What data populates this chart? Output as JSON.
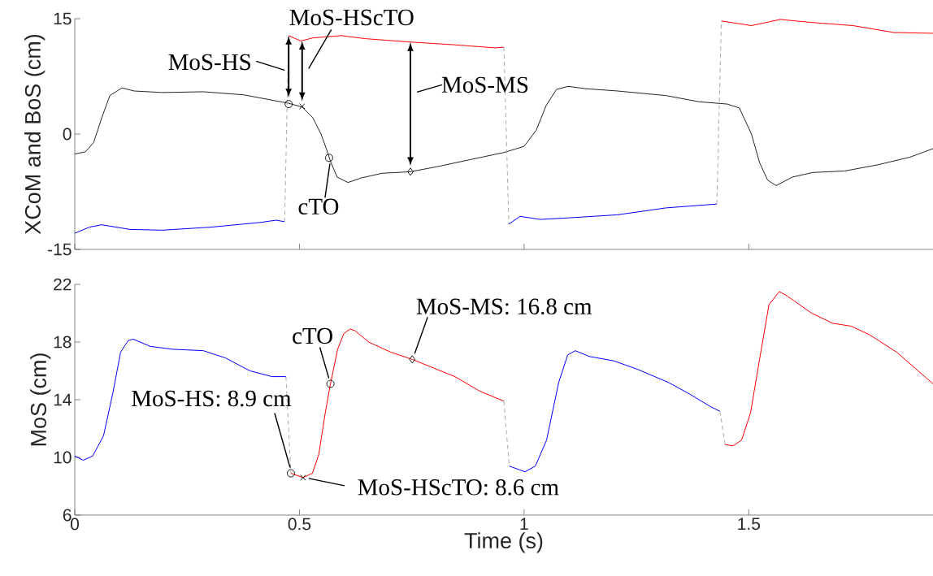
{
  "chart_data": [
    {
      "type": "line",
      "ylabel": "XCoM and BoS (cm)",
      "xlim": [
        0,
        1.91
      ],
      "xticks": [
        0,
        0.5,
        1,
        1.5
      ],
      "ylim": [
        -15,
        15
      ],
      "yticks": [
        -15,
        0,
        15
      ],
      "tick_labels": "y",
      "series": [
        {
          "color": "#262626",
          "x": [
            0,
            0.024,
            0.042,
            0.06,
            0.078,
            0.105,
            0.132,
            0.195,
            0.286,
            0.376,
            0.476,
            0.506,
            0.53,
            0.548,
            0.561,
            0.57,
            0.584,
            0.608,
            0.638,
            0.684,
            0.747,
            0.81,
            0.882,
            0.955,
            1.0,
            1.027,
            1.049,
            1.072,
            1.098,
            1.136,
            1.208,
            1.316,
            1.389,
            1.452,
            1.479,
            1.506,
            1.524,
            1.542,
            1.561,
            1.597,
            1.642,
            1.714,
            1.787,
            1.859,
            1.91
          ],
          "values": [
            -2.6,
            -2.3,
            -1.1,
            2.1,
            5.0,
            6.0,
            5.6,
            5.4,
            5.5,
            5.1,
            4.0,
            3.5,
            2.1,
            0,
            -2.1,
            -3.7,
            -5.6,
            -6.3,
            -5.7,
            -5.1,
            -4.9,
            -4.2,
            -3.3,
            -2.4,
            -1.6,
            0.5,
            3.7,
            5.8,
            6.2,
            5.9,
            5.6,
            5.0,
            4.2,
            3.9,
            3.4,
            0,
            -3.7,
            -6.0,
            -6.7,
            -5.6,
            -5.0,
            -4.8,
            -4.0,
            -3.0,
            -1.9
          ]
        },
        {
          "color": "#0000ff",
          "x": [
            0,
            0.033,
            0.06,
            0.123,
            0.195,
            0.304,
            0.412,
            0.448,
            0.467
          ],
          "values": [
            -12.9,
            -12.1,
            -11.8,
            -12.4,
            -12.5,
            -12.1,
            -11.5,
            -11.2,
            -11.4
          ]
        },
        {
          "color": "#aaaaaa",
          "line_style": "dashed",
          "x": [
            0.467,
            0.476
          ],
          "values": [
            -11.4,
            12.8
          ]
        },
        {
          "color": "#ff0000",
          "x": [
            0.476,
            0.503,
            0.53,
            0.593,
            0.647,
            0.738,
            0.846,
            0.937,
            0.955
          ],
          "values": [
            12.8,
            12.1,
            12.5,
            12.8,
            12.4,
            12.0,
            11.6,
            11.2,
            11.3
          ]
        },
        {
          "color": "#aaaaaa",
          "line_style": "dashed",
          "x": [
            0.955,
            0.966
          ],
          "values": [
            11.3,
            -11.7
          ]
        },
        {
          "color": "#0000ff",
          "x": [
            0.966,
            0.991,
            1.036,
            1.099,
            1.208,
            1.316,
            1.429
          ],
          "values": [
            -11.7,
            -10.7,
            -11.1,
            -10.9,
            -10.5,
            -9.6,
            -9.1
          ]
        },
        {
          "color": "#aaaaaa",
          "line_style": "dashed",
          "x": [
            1.429,
            1.439
          ],
          "values": [
            -9.1,
            14.7
          ]
        },
        {
          "color": "#ff0000",
          "x": [
            1.439,
            1.506,
            1.57,
            1.642,
            1.732,
            1.823,
            1.91
          ],
          "values": [
            14.7,
            14.1,
            14.9,
            14.5,
            14.1,
            13.2,
            13.1
          ]
        },
        {
          "type": "scatter",
          "marker": "circle",
          "color": "#000000",
          "x": [
            0.476
          ],
          "values": [
            3.9
          ]
        },
        {
          "type": "scatter",
          "marker": "cross",
          "color": "#000000",
          "x": [
            0.506
          ],
          "values": [
            3.6
          ]
        },
        {
          "type": "scatter",
          "marker": "circle",
          "color": "#000000",
          "x": [
            0.566
          ],
          "values": [
            -3.1
          ]
        },
        {
          "type": "scatter",
          "marker": "diamond",
          "color": "#000000",
          "x": [
            0.747
          ],
          "values": [
            -4.9
          ]
        }
      ],
      "annotations": [
        {
          "text": "MoS-HS",
          "x": 0.476,
          "y": 8.3
        },
        {
          "text": "MoS-HScTO",
          "x": 0.506,
          "y": 12.1
        },
        {
          "text": "cTO",
          "x": 0.566,
          "y": -3.1
        },
        "MoS-MS"
      ]
    },
    {
      "type": "line",
      "xlabel": "Time (s)",
      "ylabel": "MoS (cm)",
      "xlim": [
        0,
        1.91
      ],
      "xticks": [
        0,
        0.5,
        1,
        1.5
      ],
      "ylim": [
        6,
        22
      ],
      "yticks": [
        6,
        10,
        14,
        18,
        22
      ],
      "series": [
        {
          "color": "#0000ff",
          "x": [
            0,
            0.019,
            0.04,
            0.064,
            0.085,
            0.102,
            0.119,
            0.13,
            0.168,
            0.217,
            0.286,
            0.335,
            0.39,
            0.439,
            0.47
          ],
          "values": [
            10.1,
            9.8,
            10.1,
            11.5,
            14.5,
            17.3,
            18.1,
            18.2,
            17.7,
            17.5,
            17.4,
            16.9,
            16.0,
            15.6,
            15.6
          ]
        },
        {
          "color": "#aaaaaa",
          "line_style": "dashed",
          "x": [
            0.47,
            0.481
          ],
          "values": [
            15.6,
            8.9
          ]
        },
        {
          "color": "#ff0000",
          "x": [
            0.481,
            0.508,
            0.529,
            0.543,
            0.557,
            0.569,
            0.585,
            0.599,
            0.613,
            0.623,
            0.654,
            0.703,
            0.751,
            0.846,
            0.901,
            0.955
          ],
          "values": [
            8.9,
            8.6,
            8.9,
            10.2,
            13.0,
            15.1,
            17.5,
            18.6,
            18.9,
            18.8,
            18.0,
            17.3,
            16.8,
            15.6,
            14.6,
            13.9
          ]
        },
        {
          "color": "#aaaaaa",
          "line_style": "dashed",
          "x": [
            0.955,
            0.967
          ],
          "values": [
            13.9,
            9.4
          ]
        },
        {
          "color": "#0000ff",
          "x": [
            0.967,
            1.002,
            1.025,
            1.05,
            1.077,
            1.097,
            1.114,
            1.145,
            1.199,
            1.253,
            1.321,
            1.368,
            1.416,
            1.436
          ],
          "values": [
            9.4,
            9.0,
            9.4,
            11.2,
            15.2,
            17.1,
            17.4,
            17.0,
            16.7,
            16.1,
            15.2,
            14.4,
            13.5,
            13.2
          ]
        },
        {
          "color": "#aaaaaa",
          "line_style": "dashed",
          "x": [
            1.436,
            1.447
          ],
          "values": [
            13.2,
            10.9
          ]
        },
        {
          "color": "#ff0000",
          "x": [
            1.447,
            1.465,
            1.484,
            1.504,
            1.524,
            1.545,
            1.568,
            1.585,
            1.64,
            1.687,
            1.728,
            1.769,
            1.829,
            1.877,
            1.91
          ],
          "values": [
            10.9,
            10.8,
            11.2,
            13.1,
            16.8,
            20.6,
            21.5,
            21.2,
            20.0,
            19.3,
            19.1,
            18.5,
            17.3,
            16.0,
            15.1
          ]
        },
        {
          "type": "scatter",
          "marker": "circle",
          "color": "#000000",
          "x": [
            0.481
          ],
          "values": [
            8.9
          ]
        },
        {
          "type": "scatter",
          "marker": "cross",
          "color": "#000000",
          "x": [
            0.508
          ],
          "values": [
            8.6
          ]
        },
        {
          "type": "scatter",
          "marker": "circle",
          "color": "#000000",
          "x": [
            0.569
          ],
          "values": [
            15.1
          ]
        },
        {
          "type": "scatter",
          "marker": "diamond",
          "color": "#000000",
          "x": [
            0.751
          ],
          "values": [
            16.8
          ]
        }
      ],
      "annotations": [
        {
          "text": "MoS-HS: 8.9 cm",
          "x": 0.481,
          "y": 8.9
        },
        {
          "text": "MoS-HScTO: 8.6 cm",
          "x": 0.508,
          "y": 8.6
        },
        {
          "text": "cTO",
          "x": 0.569,
          "y": 15.1
        },
        {
          "text": "MoS-MS: 16.8 cm",
          "x": 0.751,
          "y": 16.8
        }
      ]
    }
  ]
}
